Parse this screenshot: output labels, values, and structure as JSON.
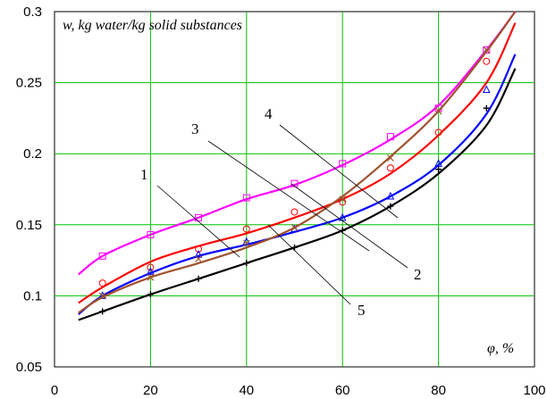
{
  "chart_data": {
    "type": "line",
    "ylabel": "w, kg water/kg solid substances",
    "xlabel": "φ, %",
    "xlim": [
      0,
      100
    ],
    "ylim": [
      0.05,
      0.3
    ],
    "xticks": [
      0,
      20,
      40,
      60,
      80,
      100
    ],
    "yticks": [
      0.05,
      0.1,
      0.15,
      0.2,
      0.25,
      0.3
    ],
    "tick_labels": {
      "x": [
        "0",
        "20",
        "40",
        "60",
        "80",
        "100"
      ],
      "y": [
        "0.05",
        "0.1",
        "0.15",
        "0.2",
        "0.25",
        "0.3"
      ]
    },
    "grid": true,
    "grid_color": "#00c000",
    "series": [
      {
        "label": "1",
        "color": "#ff00ff",
        "marker": "square",
        "x": [
          5,
          10,
          20,
          30,
          40,
          50,
          60,
          70,
          80,
          90,
          96
        ],
        "y": [
          0.115,
          0.128,
          0.143,
          0.155,
          0.168,
          0.178,
          0.192,
          0.21,
          0.234,
          0.273,
          0.3
        ],
        "points": {
          "x": [
            10,
            20,
            30,
            40,
            50,
            60,
            70,
            80,
            90
          ],
          "y": [
            0.128,
            0.143,
            0.155,
            0.169,
            0.179,
            0.193,
            0.212,
            0.232,
            0.273
          ]
        }
      },
      {
        "label": "2",
        "color": "#ff0000",
        "marker": "circle",
        "x": [
          5,
          10,
          20,
          30,
          40,
          50,
          60,
          70,
          80,
          90,
          96
        ],
        "y": [
          0.095,
          0.106,
          0.124,
          0.135,
          0.144,
          0.155,
          0.168,
          0.186,
          0.213,
          0.25,
          0.292
        ],
        "points": {
          "x": [
            10,
            20,
            30,
            40,
            50,
            60,
            70,
            80,
            90
          ],
          "y": [
            0.109,
            0.12,
            0.133,
            0.147,
            0.159,
            0.166,
            0.19,
            0.215,
            0.265
          ]
        }
      },
      {
        "label": "3",
        "color": "#0000ff",
        "marker": "triangle",
        "x": [
          5,
          10,
          20,
          30,
          40,
          50,
          60,
          70,
          80,
          90,
          96
        ],
        "y": [
          0.087,
          0.1,
          0.116,
          0.128,
          0.136,
          0.145,
          0.155,
          0.17,
          0.192,
          0.228,
          0.27
        ],
        "points": {
          "x": [
            10,
            20,
            30,
            40,
            50,
            60,
            70,
            80,
            90
          ],
          "y": [
            0.1,
            0.117,
            0.129,
            0.138,
            0.147,
            0.155,
            0.17,
            0.193,
            0.245
          ]
        }
      },
      {
        "label": "4",
        "color": "#a0522d",
        "marker": "x",
        "x": [
          5,
          10,
          20,
          30,
          40,
          50,
          60,
          70,
          80,
          90,
          96
        ],
        "y": [
          0.088,
          0.099,
          0.113,
          0.123,
          0.134,
          0.148,
          0.17,
          0.198,
          0.23,
          0.272,
          0.3
        ],
        "points": {
          "x": [
            10,
            20,
            30,
            40,
            50,
            60,
            70,
            80,
            90
          ],
          "y": [
            0.1,
            0.113,
            0.126,
            0.137,
            0.148,
            0.168,
            0.197,
            0.23,
            0.273
          ]
        }
      },
      {
        "label": "5",
        "color": "#000000",
        "marker": "plus",
        "x": [
          5,
          10,
          20,
          30,
          40,
          50,
          60,
          70,
          80,
          90,
          96
        ],
        "y": [
          0.083,
          0.089,
          0.101,
          0.112,
          0.123,
          0.134,
          0.146,
          0.163,
          0.186,
          0.22,
          0.26
        ],
        "points": {
          "x": [
            10,
            20,
            30,
            40,
            50,
            60,
            70,
            80,
            90
          ],
          "y": [
            0.089,
            0.101,
            0.112,
            0.123,
            0.134,
            0.146,
            0.163,
            0.189,
            0.232
          ]
        }
      }
    ]
  }
}
